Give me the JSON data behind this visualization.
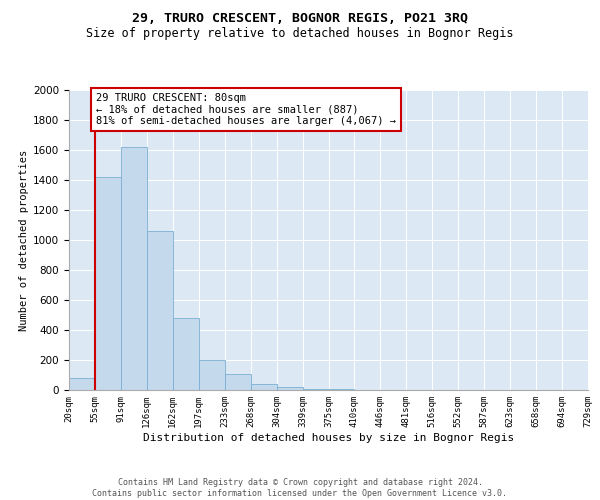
{
  "title1": "29, TRURO CRESCENT, BOGNOR REGIS, PO21 3RQ",
  "title2": "Size of property relative to detached houses in Bognor Regis",
  "xlabel": "Distribution of detached houses by size in Bognor Regis",
  "ylabel": "Number of detached properties",
  "bin_labels": [
    "20sqm",
    "55sqm",
    "91sqm",
    "126sqm",
    "162sqm",
    "197sqm",
    "233sqm",
    "268sqm",
    "304sqm",
    "339sqm",
    "375sqm",
    "410sqm",
    "446sqm",
    "481sqm",
    "516sqm",
    "552sqm",
    "587sqm",
    "623sqm",
    "658sqm",
    "694sqm",
    "729sqm"
  ],
  "bar_values": [
    80,
    1420,
    1620,
    1060,
    480,
    200,
    110,
    40,
    20,
    10,
    5,
    2,
    1,
    0,
    0,
    0,
    0,
    0,
    0,
    0
  ],
  "bar_color": "#c5d9ed",
  "bar_edge_color": "#7bafd4",
  "annotation_text": "29 TRURO CRESCENT: 80sqm\n← 18% of detached houses are smaller (887)\n81% of semi-detached houses are larger (4,067) →",
  "vline_color": "#cc0000",
  "ylim_max": 2000,
  "yticks": [
    0,
    200,
    400,
    600,
    800,
    1000,
    1200,
    1400,
    1600,
    1800,
    2000
  ],
  "footer1": "Contains HM Land Registry data © Crown copyright and database right 2024.",
  "footer2": "Contains public sector information licensed under the Open Government Licence v3.0.",
  "bg_color": "#dde8f5"
}
